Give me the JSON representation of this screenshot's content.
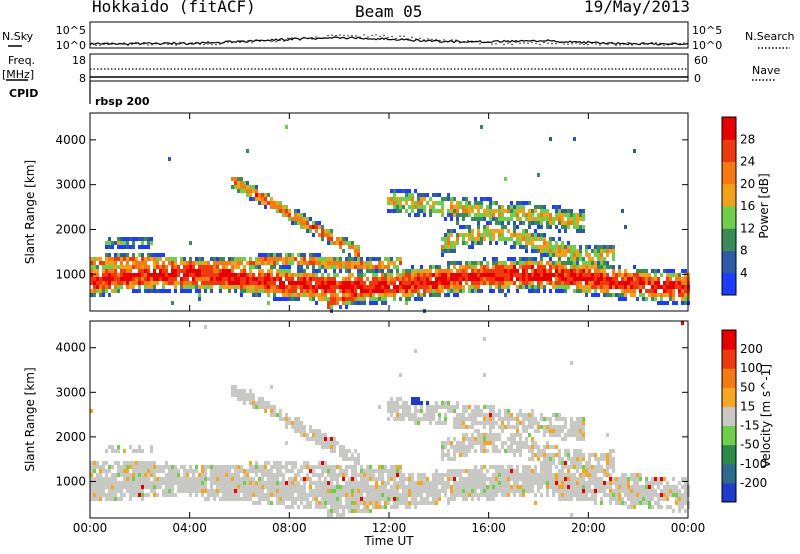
{
  "header": {
    "site": "Hokkaido (fitACF)",
    "beam": "Beam 05",
    "date": "19/May/2013"
  },
  "top_panel": {
    "left_label": "N.Sky",
    "right_label": "N.Search",
    "ticks": [
      "10^5",
      "10^0"
    ]
  },
  "freq_panel": {
    "left_label_1": "Freq.",
    "left_label_2": "[MHz]",
    "right_label": "Nave",
    "left_ticks": [
      "18",
      "8"
    ],
    "right_ticks": [
      "60",
      "0"
    ]
  },
  "cpid": {
    "label": "CPID",
    "value": "rbsp 200"
  },
  "chart_data": [
    {
      "type": "heatmap",
      "name": "power",
      "ylabel": "Slant Range [km]",
      "xlabel": "",
      "xlim": [
        0,
        24
      ],
      "ylim": [
        180,
        4600
      ],
      "x_ticks": [
        "00:00",
        "04:00",
        "08:00",
        "12:00",
        "16:00",
        "20:00",
        "00:00"
      ],
      "y_ticks": [
        1000,
        2000,
        3000,
        4000
      ],
      "colorbar": {
        "label": "Power [dB]",
        "ticks": [
          "4",
          "8",
          "12",
          "16",
          "20",
          "24",
          "28"
        ],
        "colors": [
          "#1e3cff",
          "#2e5aa8",
          "#3a8a5a",
          "#6fcf4a",
          "#f2a21a",
          "#f57a12",
          "#ee3a0c",
          "#e60000"
        ]
      },
      "bands": [
        {
          "t0": 0.0,
          "t1": 24.0,
          "r0": 300,
          "r1": 1600,
          "level": "mid"
        },
        {
          "t0": 5.0,
          "t1": 11.0,
          "r0": 1100,
          "r1": 3200,
          "level": "high"
        },
        {
          "t0": 12.0,
          "t1": 21.0,
          "r0": 1200,
          "r1": 3100,
          "level": "mid"
        }
      ]
    },
    {
      "type": "heatmap",
      "name": "velocity",
      "ylabel": "Slant Range [km]",
      "xlabel": "Time UT",
      "xlim": [
        0,
        24
      ],
      "ylim": [
        180,
        4600
      ],
      "x_ticks": [
        "00:00",
        "04:00",
        "08:00",
        "12:00",
        "16:00",
        "20:00",
        "00:00"
      ],
      "y_ticks": [
        1000,
        2000,
        3000,
        4000
      ],
      "colorbar": {
        "label": "Velocity [m s^-1]",
        "ticks": [
          "200",
          "100",
          "50",
          "15",
          "-15",
          "-50",
          "-100",
          "-200"
        ],
        "colors": [
          "#1e3cc8",
          "#2e6a8a",
          "#2e8a4a",
          "#6fcf4a",
          "#c8c8c4",
          "#f5a623",
          "#f57a12",
          "#ee3a0c",
          "#e60000"
        ]
      }
    }
  ],
  "colors": {
    "ground_scatter": "#c8c8c4",
    "frame": "#000000"
  }
}
